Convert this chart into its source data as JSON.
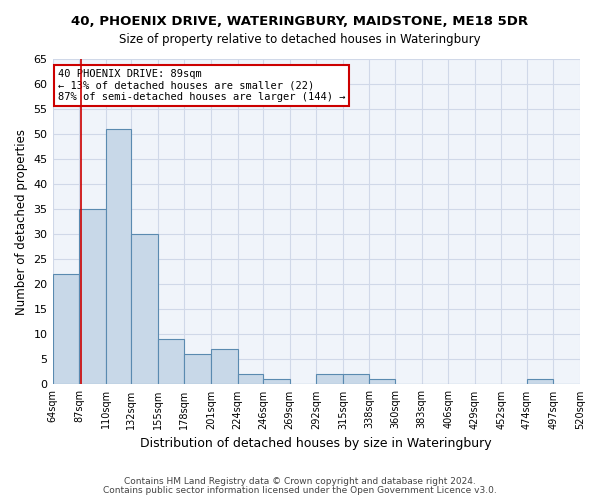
{
  "title_line1": "40, PHOENIX DRIVE, WATERINGBURY, MAIDSTONE, ME18 5DR",
  "title_line2": "Size of property relative to detached houses in Wateringbury",
  "xlabel": "Distribution of detached houses by size in Wateringbury",
  "ylabel": "Number of detached properties",
  "footnote1": "Contains HM Land Registry data © Crown copyright and database right 2024.",
  "footnote2": "Contains public sector information licensed under the Open Government Licence v3.0.",
  "annotation_title": "40 PHOENIX DRIVE: 89sqm",
  "annotation_line1": "← 13% of detached houses are smaller (22)",
  "annotation_line2": "87% of semi-detached houses are larger (144) →",
  "property_size": 89,
  "bar_color": "#c8d8e8",
  "bar_edge_color": "#5a8ab0",
  "vline_color": "#cc0000",
  "annotation_box_color": "#cc0000",
  "grid_color": "#d0d8e8",
  "bg_color": "#f0f4fa",
  "bins": [
    64,
    87,
    110,
    132,
    155,
    178,
    201,
    224,
    246,
    269,
    292,
    315,
    338,
    360,
    383,
    406,
    429,
    452,
    474,
    497,
    520
  ],
  "bin_labels": [
    "64sqm",
    "87sqm",
    "110sqm",
    "132sqm",
    "155sqm",
    "178sqm",
    "201sqm",
    "224sqm",
    "246sqm",
    "269sqm",
    "292sqm",
    "315sqm",
    "338sqm",
    "360sqm",
    "383sqm",
    "406sqm",
    "429sqm",
    "452sqm",
    "474sqm",
    "497sqm",
    "520sqm"
  ],
  "counts": [
    22,
    35,
    51,
    30,
    9,
    6,
    7,
    2,
    1,
    0,
    2,
    2,
    1,
    0,
    0,
    0,
    0,
    0,
    1,
    0
  ],
  "ylim": [
    0,
    65
  ],
  "yticks": [
    0,
    5,
    10,
    15,
    20,
    25,
    30,
    35,
    40,
    45,
    50,
    55,
    60,
    65
  ]
}
